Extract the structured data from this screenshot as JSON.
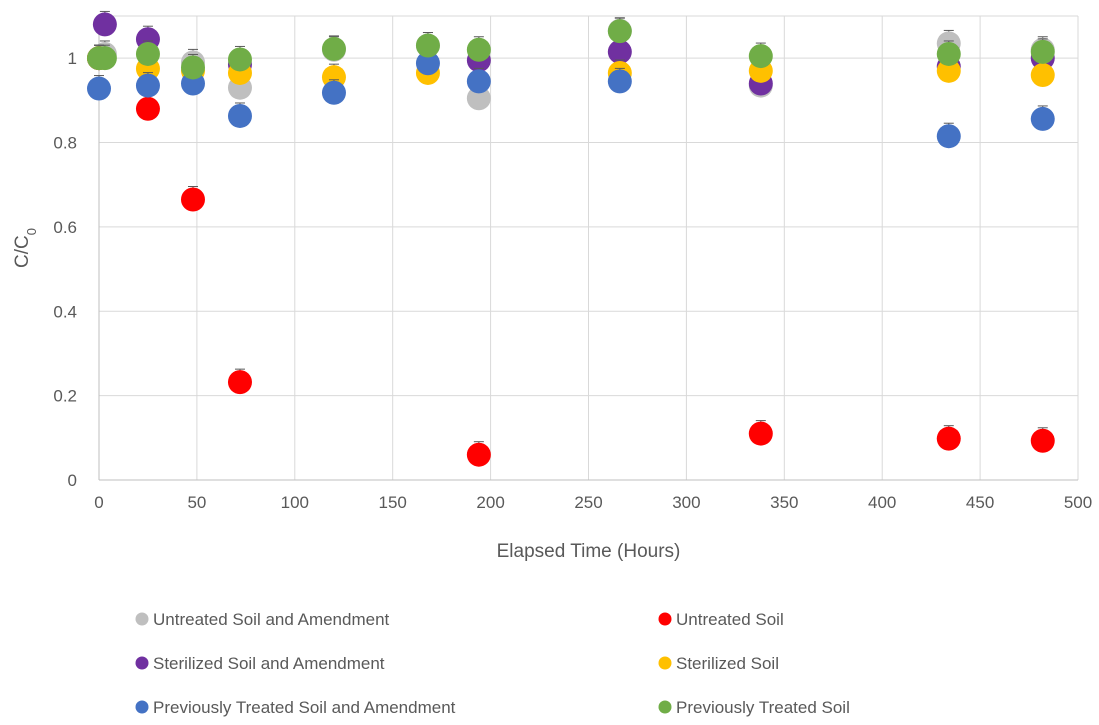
{
  "chart_data": {
    "type": "scatter",
    "xlabel": "Elapsed Time (Hours)",
    "ylabel": "C/C",
    "ylabel_subscript": "0",
    "xlim": [
      0,
      500
    ],
    "ylim": [
      0,
      1.1
    ],
    "xticks": [
      0,
      50,
      100,
      150,
      200,
      250,
      300,
      350,
      400,
      450,
      500
    ],
    "yticks": [
      0,
      0.2,
      0.4,
      0.6,
      0.8,
      1
    ],
    "xtick_labels": [
      "0",
      "50",
      "100",
      "150",
      "200",
      "250",
      "300",
      "350",
      "400",
      "450",
      "500"
    ],
    "ytick_labels": [
      "0",
      "0.2",
      "0.4",
      "0.6",
      "0.8",
      "1"
    ],
    "grid": true,
    "error_bars": true,
    "legend_position": "bottom",
    "series": [
      {
        "name": "Untreated Soil and Amendment",
        "color": "#bfbfbf",
        "points": [
          [
            0,
            1.0
          ],
          [
            3,
            1.01
          ],
          [
            48,
            0.99
          ],
          [
            72,
            0.93
          ],
          [
            120,
            1.02
          ],
          [
            168,
            1.03
          ],
          [
            194,
            0.905
          ],
          [
            266,
            1.065
          ],
          [
            338,
            0.935
          ],
          [
            434,
            1.035
          ],
          [
            482,
            1.02
          ]
        ]
      },
      {
        "name": "Untreated Soil",
        "color": "#ff0000",
        "points": [
          [
            0,
            1.0
          ],
          [
            25,
            0.88
          ],
          [
            48,
            0.665
          ],
          [
            72,
            0.232
          ],
          [
            194,
            0.06
          ],
          [
            338,
            0.11
          ],
          [
            434,
            0.098
          ],
          [
            482,
            0.093
          ]
        ]
      },
      {
        "name": "Sterilized Soil and Amendment",
        "color": "#7030a0",
        "points": [
          [
            0,
            1.0
          ],
          [
            3,
            1.08
          ],
          [
            25,
            1.045
          ],
          [
            72,
            0.985
          ],
          [
            194,
            0.995
          ],
          [
            266,
            1.015
          ],
          [
            338,
            0.94
          ],
          [
            434,
            0.98
          ],
          [
            482,
            1.0
          ]
        ]
      },
      {
        "name": "Sterilized Soil",
        "color": "#ffc000",
        "points": [
          [
            0,
            1.0
          ],
          [
            25,
            0.975
          ],
          [
            48,
            0.97
          ],
          [
            72,
            0.965
          ],
          [
            120,
            0.955
          ],
          [
            168,
            0.965
          ],
          [
            266,
            0.965
          ],
          [
            338,
            0.97
          ],
          [
            434,
            0.97
          ],
          [
            482,
            0.96
          ]
        ]
      },
      {
        "name": "Previously Treated Soil and Amendment",
        "color": "#4472c4",
        "points": [
          [
            0,
            0.928
          ],
          [
            25,
            0.935
          ],
          [
            48,
            0.94
          ],
          [
            72,
            0.863
          ],
          [
            120,
            0.918
          ],
          [
            168,
            0.988
          ],
          [
            194,
            0.945
          ],
          [
            266,
            0.945
          ],
          [
            434,
            0.815
          ],
          [
            482,
            0.856
          ]
        ]
      },
      {
        "name": "Previously Treated Soil",
        "color": "#70ad47",
        "points": [
          [
            0,
            1.0
          ],
          [
            3,
            1.0
          ],
          [
            25,
            1.01
          ],
          [
            48,
            0.978
          ],
          [
            72,
            0.997
          ],
          [
            120,
            1.022
          ],
          [
            168,
            1.03
          ],
          [
            194,
            1.02
          ],
          [
            266,
            1.064
          ],
          [
            338,
            1.005
          ],
          [
            434,
            1.01
          ],
          [
            482,
            1.015
          ]
        ]
      }
    ]
  }
}
